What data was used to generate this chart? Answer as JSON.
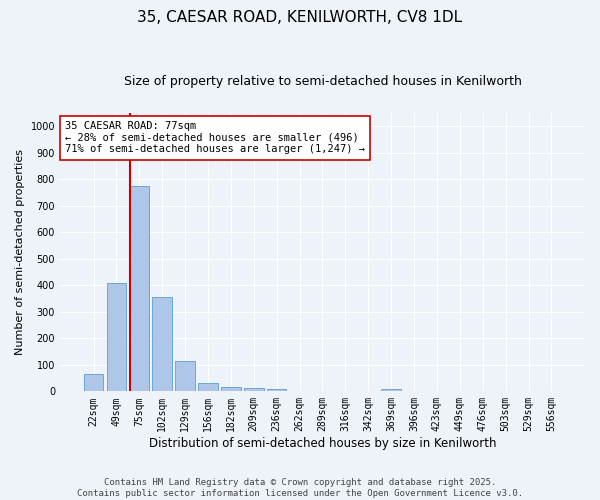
{
  "title": "35, CAESAR ROAD, KENILWORTH, CV8 1DL",
  "subtitle": "Size of property relative to semi-detached houses in Kenilworth",
  "xlabel": "Distribution of semi-detached houses by size in Kenilworth",
  "ylabel": "Number of semi-detached properties",
  "categories": [
    "22sqm",
    "49sqm",
    "75sqm",
    "102sqm",
    "129sqm",
    "156sqm",
    "182sqm",
    "209sqm",
    "236sqm",
    "262sqm",
    "289sqm",
    "316sqm",
    "342sqm",
    "369sqm",
    "396sqm",
    "423sqm",
    "449sqm",
    "476sqm",
    "503sqm",
    "529sqm",
    "556sqm"
  ],
  "values": [
    65,
    410,
    775,
    355,
    115,
    33,
    18,
    12,
    8,
    0,
    0,
    0,
    0,
    8,
    0,
    0,
    0,
    0,
    0,
    0,
    0
  ],
  "bar_color": "#aec6e8",
  "bar_edge_color": "#5a9fd4",
  "highlight_bar_index": 2,
  "annotation_text": "35 CAESAR ROAD: 77sqm\n← 28% of semi-detached houses are smaller (496)\n71% of semi-detached houses are larger (1,247) →",
  "annotation_box_color": "#ffffff",
  "annotation_box_edge_color": "#cc0000",
  "annotation_text_color": "#000000",
  "vline_color": "#cc0000",
  "ylim": [
    0,
    1050
  ],
  "yticks": [
    0,
    100,
    200,
    300,
    400,
    500,
    600,
    700,
    800,
    900,
    1000
  ],
  "background_color": "#eef2f9",
  "plot_bg_color": "#eef2f9",
  "grid_color": "#ffffff",
  "footer_text": "Contains HM Land Registry data © Crown copyright and database right 2025.\nContains public sector information licensed under the Open Government Licence v3.0.",
  "title_fontsize": 11,
  "subtitle_fontsize": 9,
  "xlabel_fontsize": 8.5,
  "ylabel_fontsize": 8,
  "tick_fontsize": 7,
  "annotation_fontsize": 7.5,
  "footer_fontsize": 6.5
}
